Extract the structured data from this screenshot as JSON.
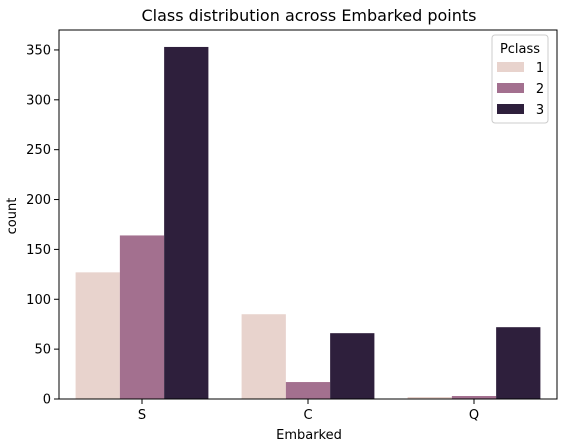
{
  "chart_data": {
    "type": "bar",
    "title": "Class distribution across Embarked points",
    "xlabel": "Embarked",
    "ylabel": "count",
    "categories": [
      "S",
      "C",
      "Q"
    ],
    "ylim": [
      0,
      370
    ],
    "yticks": [
      0,
      50,
      100,
      150,
      200,
      250,
      300,
      350
    ],
    "legend": {
      "title": "Pclass",
      "placement": "top-right"
    },
    "series": [
      {
        "name": "1",
        "color": "#e8d3cd",
        "values": [
          127,
          85,
          2
        ]
      },
      {
        "name": "2",
        "color": "#a3708f",
        "values": [
          164,
          17,
          3
        ]
      },
      {
        "name": "3",
        "color": "#2e1f3c",
        "values": [
          353,
          66,
          72
        ]
      }
    ],
    "grid": false
  }
}
